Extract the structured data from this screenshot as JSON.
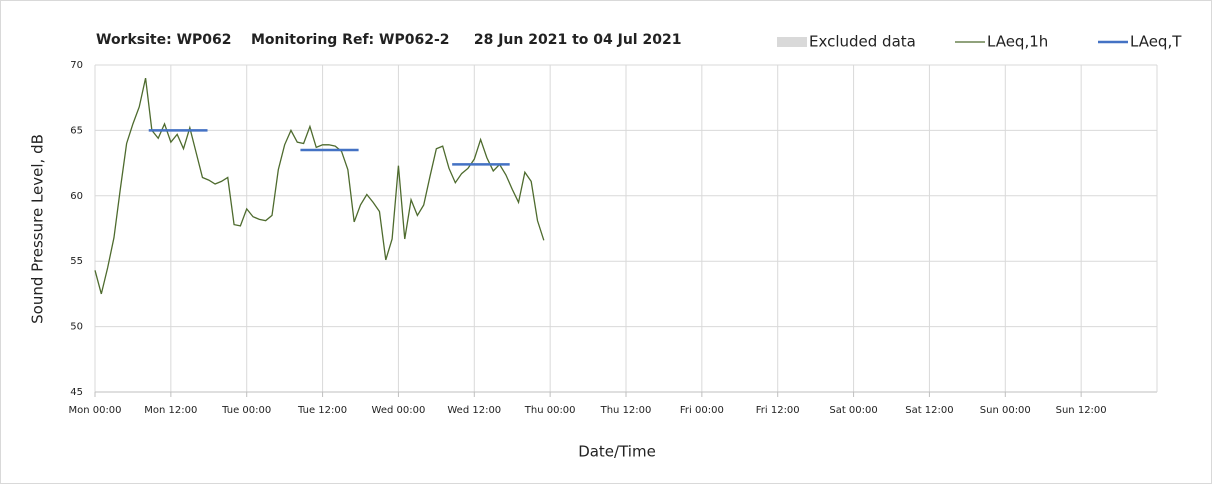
{
  "chart_data": {
    "type": "line",
    "title": "Worksite: WP062    Monitoring Ref: WP062-2     28 Jun 2021 to 04 Jul 2021",
    "xlabel": "Date/Time",
    "ylabel": "Sound Pressure Level, dB",
    "xlim": [
      0,
      168
    ],
    "ylim": [
      45,
      70
    ],
    "xticks": [
      {
        "value": 0,
        "label": "Mon 00:00"
      },
      {
        "value": 12,
        "label": "Mon 12:00"
      },
      {
        "value": 24,
        "label": "Tue 00:00"
      },
      {
        "value": 36,
        "label": "Tue 12:00"
      },
      {
        "value": 48,
        "label": "Wed 00:00"
      },
      {
        "value": 60,
        "label": "Wed 12:00"
      },
      {
        "value": 72,
        "label": "Thu 00:00"
      },
      {
        "value": 84,
        "label": "Thu 12:00"
      },
      {
        "value": 96,
        "label": "Fri 00:00"
      },
      {
        "value": 108,
        "label": "Fri 12:00"
      },
      {
        "value": 120,
        "label": "Sat 00:00"
      },
      {
        "value": 132,
        "label": "Sat 12:00"
      },
      {
        "value": 144,
        "label": "Sun 00:00"
      },
      {
        "value": 156,
        "label": "Sun 12:00"
      }
    ],
    "yticks": [
      45,
      50,
      55,
      60,
      65,
      70
    ],
    "grid": true,
    "legend": "top-right",
    "series": [
      {
        "name": "Excluded data",
        "color": "#d9d9d9",
        "mark": "area",
        "x": [],
        "values": []
      },
      {
        "name": "LAeq,1h",
        "color": "#4e6b2e",
        "mark": "line",
        "width": 1.3,
        "x": [
          0,
          1,
          2,
          3,
          4,
          5,
          6,
          7,
          8,
          9,
          10,
          11,
          12,
          13,
          14,
          15,
          16,
          17,
          18,
          19,
          20,
          21,
          22,
          23,
          24,
          25,
          26,
          27,
          28,
          29,
          30,
          31,
          32,
          33,
          34,
          35,
          36,
          37,
          38,
          39,
          40,
          41,
          42,
          43,
          44,
          45,
          46,
          47,
          48,
          49,
          50,
          51,
          52,
          53,
          54,
          55,
          56,
          57,
          58,
          59,
          60,
          61,
          62,
          63,
          64,
          65,
          66,
          67,
          68,
          69,
          70,
          71
        ],
        "values": [
          54.3,
          52.5,
          54.5,
          56.8,
          60.5,
          64.0,
          65.5,
          66.8,
          69.0,
          65.0,
          64.4,
          65.5,
          64.1,
          64.7,
          63.6,
          65.2,
          63.3,
          61.4,
          61.2,
          60.9,
          61.1,
          61.4,
          57.8,
          57.7,
          59.0,
          58.4,
          58.2,
          58.1,
          58.5,
          62.0,
          63.9,
          65.0,
          64.1,
          64.0,
          65.3,
          63.7,
          63.9,
          63.9,
          63.8,
          63.4,
          62.0,
          58.0,
          59.3,
          60.1,
          59.5,
          58.8,
          55.1,
          56.7,
          62.3,
          56.7,
          59.7,
          58.5,
          59.3,
          61.5,
          63.6,
          63.8,
          62.1,
          61.0,
          61.7,
          62.1,
          62.8,
          64.3,
          62.9,
          61.9,
          62.4,
          61.6,
          60.5,
          59.5,
          61.8,
          61.1,
          58.1,
          56.6
        ]
      },
      {
        "name": "LAeq,T",
        "color": "#4472c4",
        "mark": "line",
        "width": 2.5,
        "x": [
          8.5,
          17.8,
          17.8,
          32.5,
          41.7,
          41.7,
          56.5,
          65.6
        ],
        "values": [
          65.0,
          65.0,
          null,
          63.5,
          63.5,
          null,
          62.4,
          62.4
        ]
      }
    ]
  }
}
